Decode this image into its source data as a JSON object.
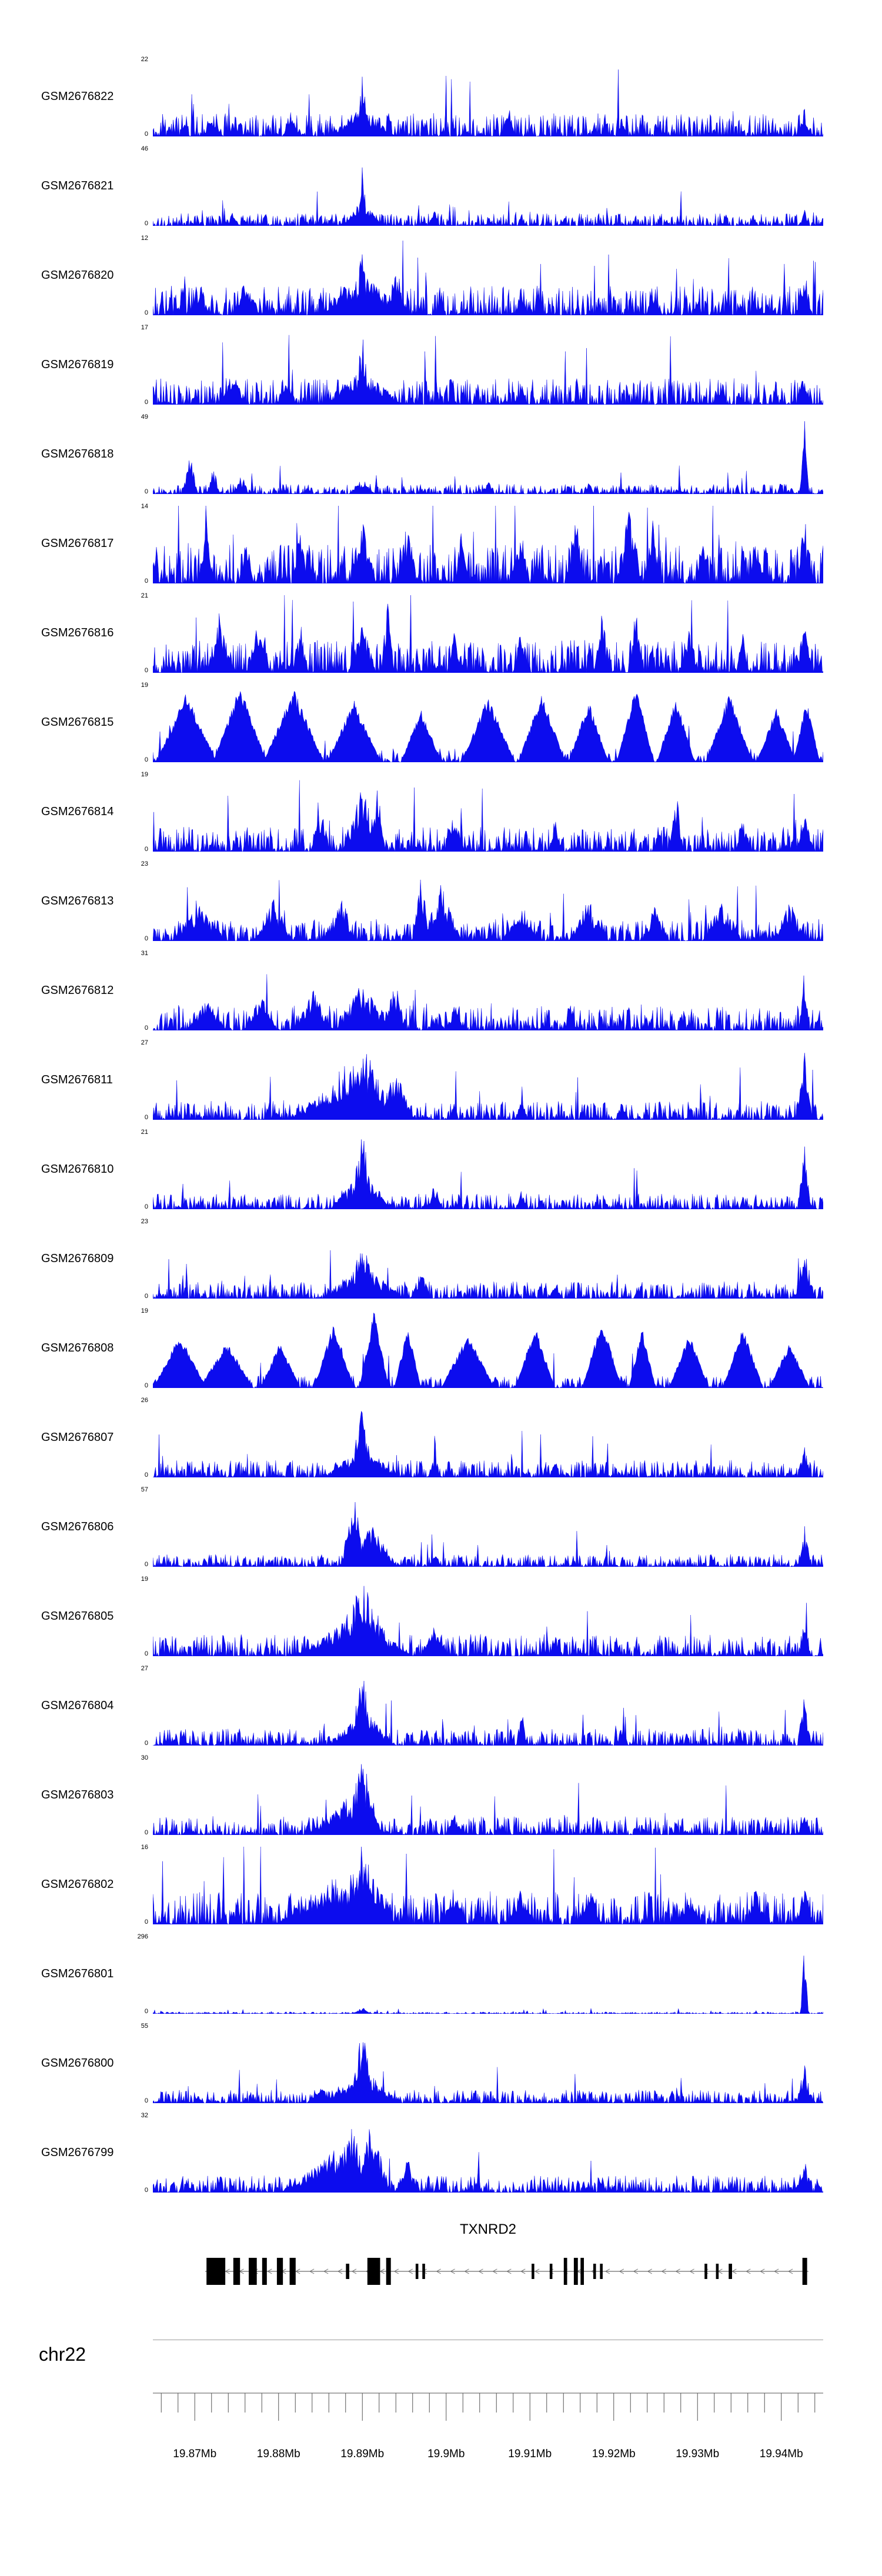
{
  "figure": {
    "chrom_label": "chr22",
    "signal_color": "#0c0cee",
    "background": "#ffffff"
  },
  "chart_data": {
    "type": "area",
    "title": "",
    "description": "Genome browser coverage tracks (GEO GSM samples) over chr22 around the TXNRD2 locus; y values are normalized 0..1 fractions of each track's ymax, x positions are fractions of the plotted window.",
    "x_axis": {
      "unit": "Mb",
      "start_mb": 19.865,
      "end_mb": 19.945,
      "tick_labels": [
        "19.87Mb",
        "19.88Mb",
        "19.89Mb",
        "19.9Mb",
        "19.91Mb",
        "19.92Mb",
        "19.93Mb",
        "19.94Mb"
      ],
      "tick_values_mb": [
        19.87,
        19.88,
        19.89,
        19.9,
        19.91,
        19.92,
        19.93,
        19.94
      ],
      "minor_tick_step_mb": 0.002
    },
    "y_axis": {
      "zero_label": "0"
    },
    "tracks": [
      {
        "name": "GSM2676822",
        "ymax": 22,
        "render_seed": 11,
        "noise_level": 0.3,
        "smooth": false,
        "peaks": [
          [
            0.3125,
            0.01,
            1.0
          ],
          [
            0.3125,
            0.05,
            0.4
          ],
          [
            0.205,
            0.012,
            0.35
          ],
          [
            0.53,
            0.01,
            0.45
          ],
          [
            0.7,
            0.008,
            0.3
          ],
          [
            0.09,
            0.015,
            0.3
          ],
          [
            0.972,
            0.01,
            0.4
          ]
        ]
      },
      {
        "name": "GSM2676821",
        "ymax": 46,
        "render_seed": 22,
        "noise_level": 0.16,
        "smooth": false,
        "peaks": [
          [
            0.3125,
            0.007,
            1.0
          ],
          [
            0.3125,
            0.03,
            0.35
          ],
          [
            0.12,
            0.008,
            0.22
          ],
          [
            0.42,
            0.008,
            0.22
          ],
          [
            0.55,
            0.006,
            0.18
          ],
          [
            0.972,
            0.008,
            0.25
          ]
        ]
      },
      {
        "name": "GSM2676820",
        "ymax": 12,
        "render_seed": 33,
        "noise_level": 0.38,
        "smooth": false,
        "peaks": [
          [
            0.3125,
            0.012,
            1.0
          ],
          [
            0.3125,
            0.07,
            0.55
          ],
          [
            0.36,
            0.02,
            0.6
          ],
          [
            0.14,
            0.02,
            0.5
          ],
          [
            0.07,
            0.015,
            0.45
          ],
          [
            0.55,
            0.01,
            0.4
          ],
          [
            0.75,
            0.01,
            0.35
          ],
          [
            0.972,
            0.012,
            0.6
          ]
        ]
      },
      {
        "name": "GSM2676819",
        "ymax": 17,
        "render_seed": 44,
        "noise_level": 0.34,
        "smooth": false,
        "peaks": [
          [
            0.3125,
            0.012,
            1.0
          ],
          [
            0.3125,
            0.06,
            0.5
          ],
          [
            0.12,
            0.02,
            0.4
          ],
          [
            0.2,
            0.015,
            0.35
          ],
          [
            0.55,
            0.008,
            0.3
          ],
          [
            0.972,
            0.01,
            0.5
          ]
        ]
      },
      {
        "name": "GSM2676818",
        "ymax": 49,
        "render_seed": 55,
        "noise_level": 0.13,
        "smooth": false,
        "peaks": [
          [
            0.055,
            0.012,
            0.55
          ],
          [
            0.09,
            0.01,
            0.38
          ],
          [
            0.13,
            0.008,
            0.25
          ],
          [
            0.3125,
            0.02,
            0.2
          ],
          [
            0.5,
            0.01,
            0.22
          ],
          [
            0.65,
            0.008,
            0.18
          ],
          [
            0.972,
            0.007,
            1.0
          ]
        ]
      },
      {
        "name": "GSM2676817",
        "ymax": 14,
        "render_seed": 66,
        "noise_level": 0.5,
        "smooth": false,
        "peaks": [
          [
            0.08,
            0.012,
            0.85
          ],
          [
            0.14,
            0.01,
            0.7
          ],
          [
            0.22,
            0.012,
            0.75
          ],
          [
            0.3125,
            0.02,
            0.9
          ],
          [
            0.38,
            0.015,
            0.85
          ],
          [
            0.46,
            0.01,
            0.7
          ],
          [
            0.55,
            0.012,
            0.8
          ],
          [
            0.63,
            0.015,
            0.95
          ],
          [
            0.71,
            0.02,
            1.0
          ],
          [
            0.745,
            0.012,
            0.95
          ],
          [
            0.82,
            0.01,
            0.7
          ],
          [
            0.9,
            0.012,
            0.75
          ],
          [
            0.972,
            0.012,
            0.9
          ]
        ]
      },
      {
        "name": "GSM2676816",
        "ymax": 21,
        "render_seed": 77,
        "noise_level": 0.42,
        "smooth": false,
        "peaks": [
          [
            0.1,
            0.02,
            0.85
          ],
          [
            0.16,
            0.015,
            0.9
          ],
          [
            0.22,
            0.012,
            0.7
          ],
          [
            0.3125,
            0.02,
            0.8
          ],
          [
            0.35,
            0.01,
            1.0
          ],
          [
            0.45,
            0.01,
            0.6
          ],
          [
            0.55,
            0.012,
            0.65
          ],
          [
            0.67,
            0.012,
            0.85
          ],
          [
            0.72,
            0.01,
            0.9
          ],
          [
            0.8,
            0.015,
            0.6
          ],
          [
            0.88,
            0.01,
            0.55
          ],
          [
            0.972,
            0.012,
            0.7
          ]
        ]
      },
      {
        "name": "GSM2676815",
        "ymax": 19,
        "render_seed": 88,
        "noise_level": 0.18,
        "smooth": true,
        "peaks": [
          [
            0.05,
            0.045,
            0.9
          ],
          [
            0.13,
            0.04,
            1.0
          ],
          [
            0.21,
            0.045,
            0.95
          ],
          [
            0.3,
            0.04,
            0.8
          ],
          [
            0.4,
            0.03,
            0.7
          ],
          [
            0.5,
            0.04,
            0.85
          ],
          [
            0.58,
            0.035,
            0.9
          ],
          [
            0.65,
            0.03,
            0.8
          ],
          [
            0.72,
            0.028,
            1.0
          ],
          [
            0.78,
            0.028,
            0.85
          ],
          [
            0.86,
            0.035,
            0.9
          ],
          [
            0.93,
            0.03,
            0.7
          ],
          [
            0.975,
            0.02,
            0.8
          ]
        ]
      },
      {
        "name": "GSM2676814",
        "ymax": 19,
        "render_seed": 99,
        "noise_level": 0.32,
        "smooth": false,
        "peaks": [
          [
            0.3125,
            0.03,
            0.85
          ],
          [
            0.335,
            0.012,
            1.0
          ],
          [
            0.25,
            0.015,
            0.6
          ],
          [
            0.45,
            0.015,
            0.55
          ],
          [
            0.6,
            0.01,
            0.5
          ],
          [
            0.78,
            0.012,
            0.85
          ],
          [
            0.88,
            0.01,
            0.55
          ],
          [
            0.972,
            0.012,
            0.6
          ]
        ]
      },
      {
        "name": "GSM2676813",
        "ymax": 23,
        "render_seed": 110,
        "noise_level": 0.28,
        "smooth": false,
        "peaks": [
          [
            0.07,
            0.04,
            0.5
          ],
          [
            0.18,
            0.03,
            0.55
          ],
          [
            0.28,
            0.025,
            0.6
          ],
          [
            0.4,
            0.012,
            1.0
          ],
          [
            0.43,
            0.03,
            0.75
          ],
          [
            0.55,
            0.03,
            0.5
          ],
          [
            0.65,
            0.03,
            0.55
          ],
          [
            0.75,
            0.02,
            0.5
          ],
          [
            0.85,
            0.03,
            0.55
          ],
          [
            0.95,
            0.025,
            0.55
          ]
        ]
      },
      {
        "name": "GSM2676812",
        "ymax": 31,
        "render_seed": 121,
        "noise_level": 0.32,
        "smooth": false,
        "peaks": [
          [
            0.08,
            0.03,
            0.45
          ],
          [
            0.16,
            0.025,
            0.5
          ],
          [
            0.24,
            0.03,
            0.55
          ],
          [
            0.3125,
            0.04,
            0.65
          ],
          [
            0.36,
            0.02,
            0.55
          ],
          [
            0.45,
            0.015,
            0.35
          ],
          [
            0.972,
            0.008,
            1.0
          ]
        ]
      },
      {
        "name": "GSM2676811",
        "ymax": 27,
        "render_seed": 132,
        "noise_level": 0.24,
        "smooth": false,
        "peaks": [
          [
            0.3125,
            0.05,
            1.0
          ],
          [
            0.29,
            0.09,
            0.6
          ],
          [
            0.36,
            0.03,
            0.7
          ],
          [
            0.55,
            0.01,
            0.3
          ],
          [
            0.7,
            0.01,
            0.3
          ],
          [
            0.972,
            0.012,
            0.9
          ]
        ]
      },
      {
        "name": "GSM2676810",
        "ymax": 21,
        "render_seed": 143,
        "noise_level": 0.2,
        "smooth": false,
        "peaks": [
          [
            0.3125,
            0.02,
            1.0
          ],
          [
            0.3125,
            0.05,
            0.5
          ],
          [
            0.42,
            0.012,
            0.35
          ],
          [
            0.55,
            0.008,
            0.25
          ],
          [
            0.972,
            0.01,
            0.85
          ]
        ]
      },
      {
        "name": "GSM2676809",
        "ymax": 23,
        "render_seed": 154,
        "noise_level": 0.22,
        "smooth": false,
        "peaks": [
          [
            0.3125,
            0.018,
            1.0
          ],
          [
            0.3125,
            0.06,
            0.5
          ],
          [
            0.4,
            0.015,
            0.4
          ],
          [
            0.6,
            0.01,
            0.25
          ],
          [
            0.972,
            0.015,
            0.7
          ]
        ]
      },
      {
        "name": "GSM2676808",
        "ymax": 19,
        "render_seed": 165,
        "noise_level": 0.16,
        "smooth": true,
        "peaks": [
          [
            0.04,
            0.04,
            0.7
          ],
          [
            0.11,
            0.04,
            0.6
          ],
          [
            0.19,
            0.03,
            0.6
          ],
          [
            0.27,
            0.03,
            0.85
          ],
          [
            0.33,
            0.022,
            1.0
          ],
          [
            0.38,
            0.02,
            0.8
          ],
          [
            0.47,
            0.04,
            0.7
          ],
          [
            0.57,
            0.03,
            0.8
          ],
          [
            0.67,
            0.03,
            0.9
          ],
          [
            0.73,
            0.02,
            0.8
          ],
          [
            0.8,
            0.03,
            0.7
          ],
          [
            0.88,
            0.03,
            0.8
          ],
          [
            0.95,
            0.03,
            0.6
          ]
        ]
      },
      {
        "name": "GSM2676807",
        "ymax": 26,
        "render_seed": 176,
        "noise_level": 0.22,
        "smooth": false,
        "peaks": [
          [
            0.3125,
            0.02,
            1.0
          ],
          [
            0.3125,
            0.055,
            0.45
          ],
          [
            0.42,
            0.01,
            0.3
          ],
          [
            0.6,
            0.008,
            0.22
          ],
          [
            0.972,
            0.01,
            0.5
          ]
        ]
      },
      {
        "name": "GSM2676806",
        "ymax": 57,
        "render_seed": 187,
        "noise_level": 0.16,
        "smooth": false,
        "peaks": [
          [
            0.3,
            0.02,
            1.0
          ],
          [
            0.325,
            0.04,
            0.6
          ],
          [
            0.42,
            0.01,
            0.2
          ],
          [
            0.972,
            0.01,
            0.55
          ]
        ]
      },
      {
        "name": "GSM2676805",
        "ymax": 19,
        "render_seed": 198,
        "noise_level": 0.28,
        "smooth": false,
        "peaks": [
          [
            0.3125,
            0.05,
            1.0
          ],
          [
            0.3,
            0.09,
            0.55
          ],
          [
            0.42,
            0.02,
            0.4
          ],
          [
            0.6,
            0.01,
            0.3
          ],
          [
            0.972,
            0.01,
            0.5
          ]
        ]
      },
      {
        "name": "GSM2676804",
        "ymax": 27,
        "render_seed": 209,
        "noise_level": 0.22,
        "smooth": false,
        "peaks": [
          [
            0.3125,
            0.02,
            1.0
          ],
          [
            0.3125,
            0.05,
            0.5
          ],
          [
            0.55,
            0.008,
            0.5
          ],
          [
            0.7,
            0.008,
            0.3
          ],
          [
            0.972,
            0.01,
            0.75
          ]
        ]
      },
      {
        "name": "GSM2676803",
        "ymax": 30,
        "render_seed": 220,
        "noise_level": 0.24,
        "smooth": false,
        "peaks": [
          [
            0.3125,
            0.03,
            1.0
          ],
          [
            0.29,
            0.06,
            0.5
          ],
          [
            0.45,
            0.01,
            0.3
          ],
          [
            0.972,
            0.01,
            0.35
          ]
        ]
      },
      {
        "name": "GSM2676802",
        "ymax": 16,
        "render_seed": 231,
        "noise_level": 0.42,
        "smooth": false,
        "peaks": [
          [
            0.3125,
            0.05,
            1.0
          ],
          [
            0.27,
            0.09,
            0.6
          ],
          [
            0.45,
            0.02,
            0.5
          ],
          [
            0.55,
            0.02,
            0.5
          ],
          [
            0.65,
            0.02,
            0.5
          ],
          [
            0.8,
            0.02,
            0.45
          ],
          [
            0.9,
            0.015,
            0.5
          ],
          [
            0.972,
            0.012,
            0.6
          ]
        ]
      },
      {
        "name": "GSM2676801",
        "ymax": 296,
        "render_seed": 242,
        "noise_level": 0.025,
        "smooth": false,
        "peaks": [
          [
            0.3125,
            0.015,
            0.09
          ],
          [
            0.9,
            0.004,
            0.05
          ],
          [
            0.972,
            0.006,
            1.0
          ]
        ]
      },
      {
        "name": "GSM2676800",
        "ymax": 55,
        "render_seed": 253,
        "noise_level": 0.17,
        "smooth": false,
        "peaks": [
          [
            0.3125,
            0.02,
            1.0
          ],
          [
            0.3125,
            0.06,
            0.45
          ],
          [
            0.25,
            0.02,
            0.3
          ],
          [
            0.972,
            0.012,
            0.5
          ]
        ]
      },
      {
        "name": "GSM2676799",
        "ymax": 32,
        "render_seed": 264,
        "noise_level": 0.22,
        "smooth": false,
        "peaks": [
          [
            0.295,
            0.04,
            0.9
          ],
          [
            0.325,
            0.03,
            1.0
          ],
          [
            0.27,
            0.08,
            0.55
          ],
          [
            0.38,
            0.02,
            0.45
          ],
          [
            0.972,
            0.012,
            0.45
          ]
        ]
      }
    ],
    "gene_track": {
      "title": "TXNRD2",
      "strand": "-",
      "line_start": 0.078,
      "line_end": 0.978,
      "exons": [
        [
          0.08,
          0.028,
          1
        ],
        [
          0.12,
          0.01,
          1
        ],
        [
          0.143,
          0.012,
          1
        ],
        [
          0.163,
          0.007,
          1
        ],
        [
          0.185,
          0.009,
          1
        ],
        [
          0.204,
          0.009,
          1
        ],
        [
          0.288,
          0.005,
          0
        ],
        [
          0.32,
          0.019,
          1
        ],
        [
          0.348,
          0.007,
          1
        ],
        [
          0.392,
          0.004,
          0
        ],
        [
          0.402,
          0.004,
          0
        ],
        [
          0.565,
          0.004,
          0
        ],
        [
          0.592,
          0.004,
          0
        ],
        [
          0.613,
          0.005,
          1
        ],
        [
          0.628,
          0.006,
          1
        ],
        [
          0.638,
          0.005,
          1
        ],
        [
          0.657,
          0.004,
          0
        ],
        [
          0.667,
          0.004,
          0
        ],
        [
          0.823,
          0.004,
          0
        ],
        [
          0.84,
          0.004,
          0
        ],
        [
          0.859,
          0.005,
          0
        ],
        [
          0.969,
          0.007,
          1
        ]
      ]
    }
  }
}
